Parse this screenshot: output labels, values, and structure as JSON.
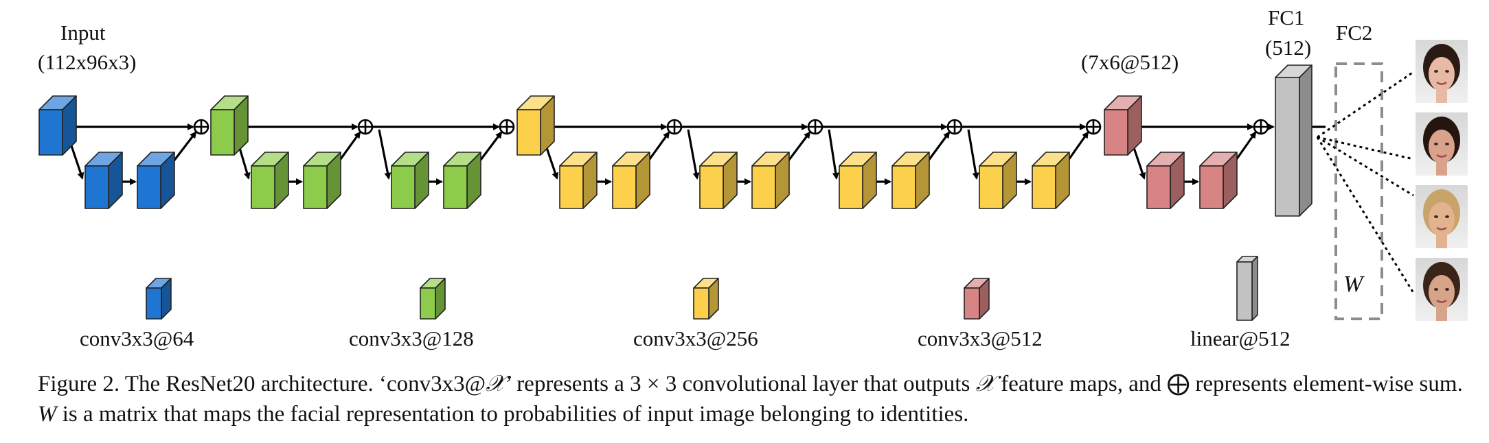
{
  "labels": {
    "input_title": "Input",
    "input_dims": "(112x96x3)",
    "stage4_dims": "(7x6@512)",
    "fc1_title": "FC1",
    "fc1_dims": "(512)",
    "fc2_title": "FC2",
    "w_label": "W"
  },
  "legend": [
    {
      "label": "conv3x3@64",
      "color": "#1f76d2"
    },
    {
      "label": "conv3x3@128",
      "color": "#8dcc4a"
    },
    {
      "label": "conv3x3@256",
      "color": "#fcd04b"
    },
    {
      "label": "conv3x3@512",
      "color": "#d98484"
    },
    {
      "label": "linear@512",
      "color": "#c2c2c2"
    }
  ],
  "colors": {
    "blue": "#1f76d2",
    "green": "#8dcc4a",
    "yellow": "#fcd04b",
    "red": "#d98484",
    "gray": "#c2c2c2",
    "dashed_box": "#8c8c8c"
  },
  "caption": {
    "prefix": "Figure 2.  The ResNet20 architecture. ‘conv3x3@",
    "x_symbol": "𝒳",
    "mid1": "’ represents a 3 × 3 convolutional layer that outputs ",
    "mid2": " feature maps, and ",
    "sum_symbol": "⨁",
    "mid3": " represents element-wise sum. ",
    "w_symbol": "W",
    "suffix": " is a matrix that maps the facial representation to probabilities of input image belonging to identities."
  },
  "faces": [
    {
      "name": "face-1",
      "skin": "#e8b9a4",
      "hair": "#2b1a14"
    },
    {
      "name": "face-2",
      "skin": "#d9a28a",
      "hair": "#24150f"
    },
    {
      "name": "face-3",
      "skin": "#e3b38f",
      "hair": "#c9a46a"
    },
    {
      "name": "face-4",
      "skin": "#d8a489",
      "hair": "#3a2418"
    }
  ]
}
